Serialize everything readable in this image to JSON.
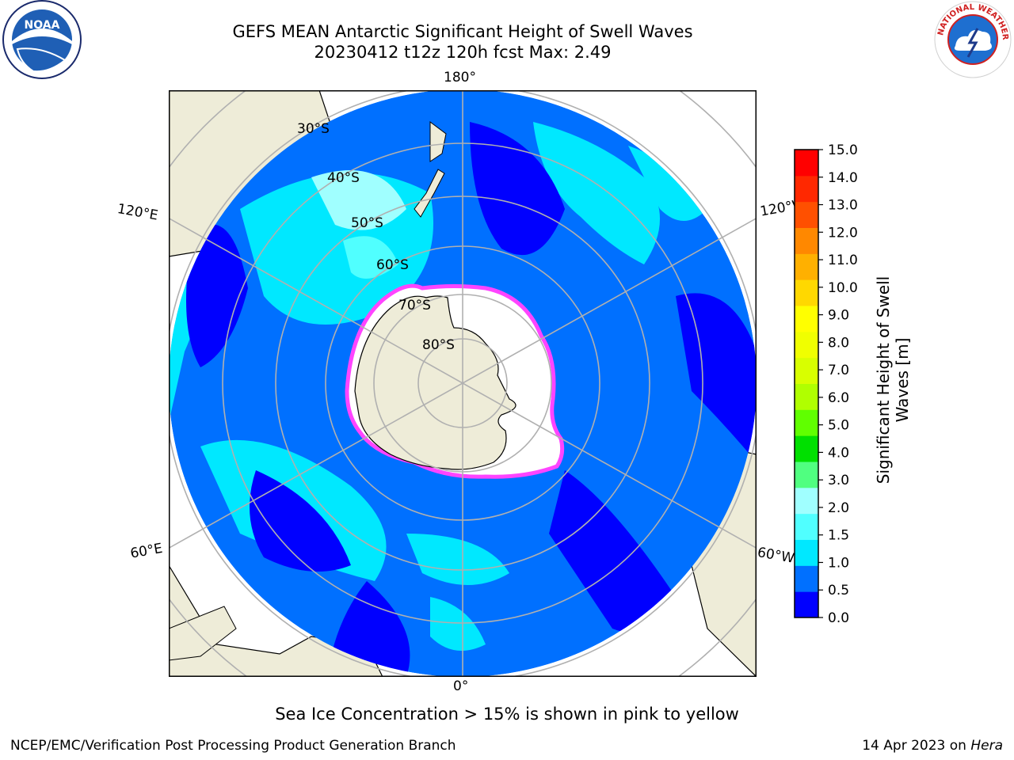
{
  "header": {
    "title_line1": "GEFS MEAN Antarctic Significant Height of Swell Waves",
    "title_line2": "20230412 t12z 120h fcst   Max: 2.49"
  },
  "map": {
    "projection": "south-polar-stereographic",
    "longitude_labels": {
      "top": "180°",
      "bottom": "0°",
      "upper_left": "120°E",
      "upper_right": "120°W",
      "lower_left": "60°E",
      "lower_right": "60°W"
    },
    "latitude_labels": [
      "30°S",
      "40°S",
      "50°S",
      "60°S",
      "70°S",
      "80°S"
    ],
    "colors": {
      "land": "#eeecd8",
      "ice_edge": "#ff44ff",
      "grid": "#b0b0b0"
    }
  },
  "colorbar": {
    "label": "Significant Height of Swell Waves [m]",
    "ticks": [
      "0.0",
      "0.5",
      "1.0",
      "1.5",
      "2.0",
      "3.0",
      "4.0",
      "5.0",
      "6.0",
      "7.0",
      "8.0",
      "9.0",
      "10.0",
      "11.0",
      "12.0",
      "13.0",
      "14.0",
      "15.0"
    ],
    "colors": [
      "#0000ff",
      "#0070ff",
      "#00e8ff",
      "#50ffff",
      "#a0ffff",
      "#50ff80",
      "#00e000",
      "#60ff00",
      "#b0ff00",
      "#d8ff00",
      "#f0ff00",
      "#ffff00",
      "#ffd800",
      "#ffb000",
      "#ff8800",
      "#ff5000",
      "#ff2800",
      "#ff0000"
    ]
  },
  "footer": {
    "note": "Sea Ice Concentration > 15% is shown in pink to yellow",
    "credit": "NCEP/EMC/Verification Post Processing Product Generation Branch",
    "date_prefix": "14 Apr 2023 on ",
    "date_machine": "Hera"
  },
  "logos": {
    "left": "NOAA",
    "right": "NATIONAL WEATHER SERVICE"
  }
}
